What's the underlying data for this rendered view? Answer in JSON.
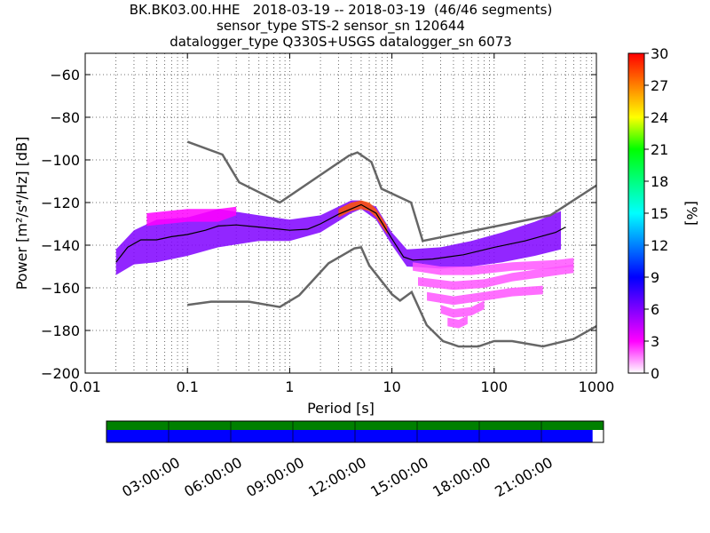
{
  "title_lines": [
    "BK.BK03.00.HHE   2018-03-19 -- 2018-03-19  (46/46 segments)",
    "sensor_type STS-2 sensor_sn 120644",
    "datalogger_type Q330S+USGS datalogger_sn 6073"
  ],
  "chart_data": {
    "type": "heatmap",
    "xlabel": "Period [s]",
    "ylabel": "Power [m²/s⁴/Hz] [dB]",
    "xscale": "log",
    "xlim": [
      0.01,
      1000
    ],
    "ylim": [
      -200,
      -50
    ],
    "xticks": [
      0.01,
      0.1,
      1,
      10,
      100,
      1000
    ],
    "xtick_labels": [
      "0.01",
      "0.1",
      "1",
      "10",
      "100",
      "1000"
    ],
    "yticks": [
      -200,
      -180,
      -160,
      -140,
      -120,
      -100,
      -80,
      -60
    ],
    "ytick_labels": [
      "−200",
      "−180",
      "−160",
      "−140",
      "−120",
      "−100",
      "−80",
      "−60"
    ],
    "grid": "dotted, vertical at log-spaced periods",
    "colorbar": {
      "label": "[%]",
      "range": [
        0,
        30
      ],
      "ticks": [
        0,
        3,
        6,
        9,
        12,
        15,
        18,
        21,
        24,
        27,
        30
      ],
      "colormap": [
        "#ffffff",
        "#ff00ff",
        "#7f00ff",
        "#0000ff",
        "#0080ff",
        "#00ffff",
        "#00ff80",
        "#00ff00",
        "#ffff00",
        "#ff8000",
        "#ff0000"
      ]
    },
    "high_noise_model": {
      "color": "#666666",
      "points": [
        [
          0.1,
          -91.5
        ],
        [
          0.22,
          -97.5
        ],
        [
          0.32,
          -110.5
        ],
        [
          0.8,
          -120
        ],
        [
          3.8,
          -98
        ],
        [
          4.6,
          -96.5
        ],
        [
          6.3,
          -101
        ],
        [
          7.9,
          -113.5
        ],
        [
          15.4,
          -120
        ],
        [
          20,
          -138
        ],
        [
          354,
          -126
        ],
        [
          1000,
          -112
        ]
      ]
    },
    "low_noise_model": {
      "color": "#666666",
      "points": [
        [
          0.1,
          -168
        ],
        [
          0.17,
          -166.5
        ],
        [
          0.4,
          -166.5
        ],
        [
          0.8,
          -169
        ],
        [
          1.24,
          -163.5
        ],
        [
          2.4,
          -148.5
        ],
        [
          4.3,
          -141.5
        ],
        [
          5,
          -141
        ],
        [
          6,
          -149.5
        ],
        [
          10,
          -163
        ],
        [
          12,
          -166
        ],
        [
          15.6,
          -162
        ],
        [
          21.9,
          -177.5
        ],
        [
          31.6,
          -185
        ],
        [
          45,
          -187.5
        ],
        [
          70,
          -187.5
        ],
        [
          100,
          -185
        ],
        [
          150,
          -185
        ],
        [
          300,
          -187.5
        ],
        [
          600,
          -184
        ],
        [
          1000,
          -178
        ]
      ]
    },
    "mode_line": {
      "color": "#000000",
      "points": [
        [
          0.02,
          -148
        ],
        [
          0.026,
          -141
        ],
        [
          0.035,
          -137.5
        ],
        [
          0.05,
          -137.5
        ],
        [
          0.07,
          -136
        ],
        [
          0.1,
          -135
        ],
        [
          0.15,
          -133
        ],
        [
          0.2,
          -131
        ],
        [
          0.3,
          -130.5
        ],
        [
          0.5,
          -131.5
        ],
        [
          0.8,
          -132.5
        ],
        [
          1,
          -133
        ],
        [
          1.5,
          -132.5
        ],
        [
          2,
          -130
        ],
        [
          3,
          -125.5
        ],
        [
          5,
          -121
        ],
        [
          7,
          -125
        ],
        [
          10,
          -137
        ],
        [
          13,
          -145.5
        ],
        [
          16,
          -147
        ],
        [
          25,
          -146.5
        ],
        [
          50,
          -144.5
        ],
        [
          100,
          -141
        ],
        [
          200,
          -138
        ],
        [
          400,
          -134
        ],
        [
          500,
          -131.5
        ]
      ]
    },
    "density_bands": [
      {
        "name": "main",
        "pct": 6,
        "points": [
          [
            0.02,
            -148,
            6
          ],
          [
            0.03,
            -141,
            8
          ],
          [
            0.05,
            -138,
            10
          ],
          [
            0.1,
            -136,
            9
          ],
          [
            0.2,
            -132,
            9
          ],
          [
            0.5,
            -132,
            6
          ],
          [
            1,
            -133,
            5
          ],
          [
            2,
            -130,
            4
          ],
          [
            4,
            -122,
            3
          ],
          [
            5,
            -121,
            2
          ],
          [
            7,
            -125,
            3
          ],
          [
            10,
            -137,
            3
          ],
          [
            14,
            -146,
            4
          ],
          [
            30,
            -146,
            5
          ],
          [
            60,
            -144,
            6
          ],
          [
            120,
            -141,
            7
          ],
          [
            250,
            -137,
            8
          ],
          [
            450,
            -133,
            9
          ]
        ]
      },
      {
        "name": "peak",
        "pct": 28,
        "points": [
          [
            3,
            -125,
            2
          ],
          [
            4,
            -122,
            2
          ],
          [
            5,
            -121,
            2
          ],
          [
            6,
            -122,
            2
          ],
          [
            7,
            -125,
            2
          ],
          [
            9,
            -133,
            2
          ]
        ]
      },
      {
        "name": "upper",
        "pct": 3,
        "points": [
          [
            0.04,
            -128,
            3
          ],
          [
            0.1,
            -126,
            3
          ],
          [
            0.2,
            -126,
            3
          ],
          [
            0.3,
            -124,
            2
          ]
        ]
      },
      {
        "name": "tail-1",
        "pct": 2,
        "points": [
          [
            16,
            -150,
            2
          ],
          [
            30,
            -152,
            2
          ],
          [
            60,
            -152,
            2
          ],
          [
            150,
            -150,
            2
          ],
          [
            400,
            -149,
            2
          ],
          [
            600,
            -148,
            2
          ]
        ]
      },
      {
        "name": "tail-2",
        "pct": 2,
        "points": [
          [
            18,
            -157,
            2
          ],
          [
            40,
            -159,
            2
          ],
          [
            80,
            -158,
            2
          ],
          [
            150,
            -155,
            2
          ],
          [
            300,
            -153,
            2
          ],
          [
            600,
            -151,
            2
          ]
        ]
      },
      {
        "name": "tail-3",
        "pct": 2,
        "points": [
          [
            22,
            -164,
            2
          ],
          [
            40,
            -166,
            2
          ],
          [
            80,
            -164,
            2
          ],
          [
            150,
            -162,
            2
          ],
          [
            300,
            -161,
            2
          ]
        ]
      },
      {
        "name": "tail-4",
        "pct": 2,
        "points": [
          [
            30,
            -170,
            2
          ],
          [
            40,
            -172,
            2
          ],
          [
            60,
            -171,
            2
          ],
          [
            80,
            -168,
            2
          ]
        ]
      },
      {
        "name": "tail-5",
        "pct": 2,
        "points": [
          [
            35,
            -176,
            2
          ],
          [
            45,
            -177,
            2
          ],
          [
            55,
            -175,
            2
          ]
        ]
      }
    ]
  },
  "timeline": {
    "data_color": "#008000",
    "gap_color": "#0000ff",
    "coverage_fraction": 0.978,
    "tick_labels": [
      "03:00:00",
      "06:00:00",
      "09:00:00",
      "12:00:00",
      "15:00:00",
      "18:00:00",
      "21:00:00"
    ]
  }
}
